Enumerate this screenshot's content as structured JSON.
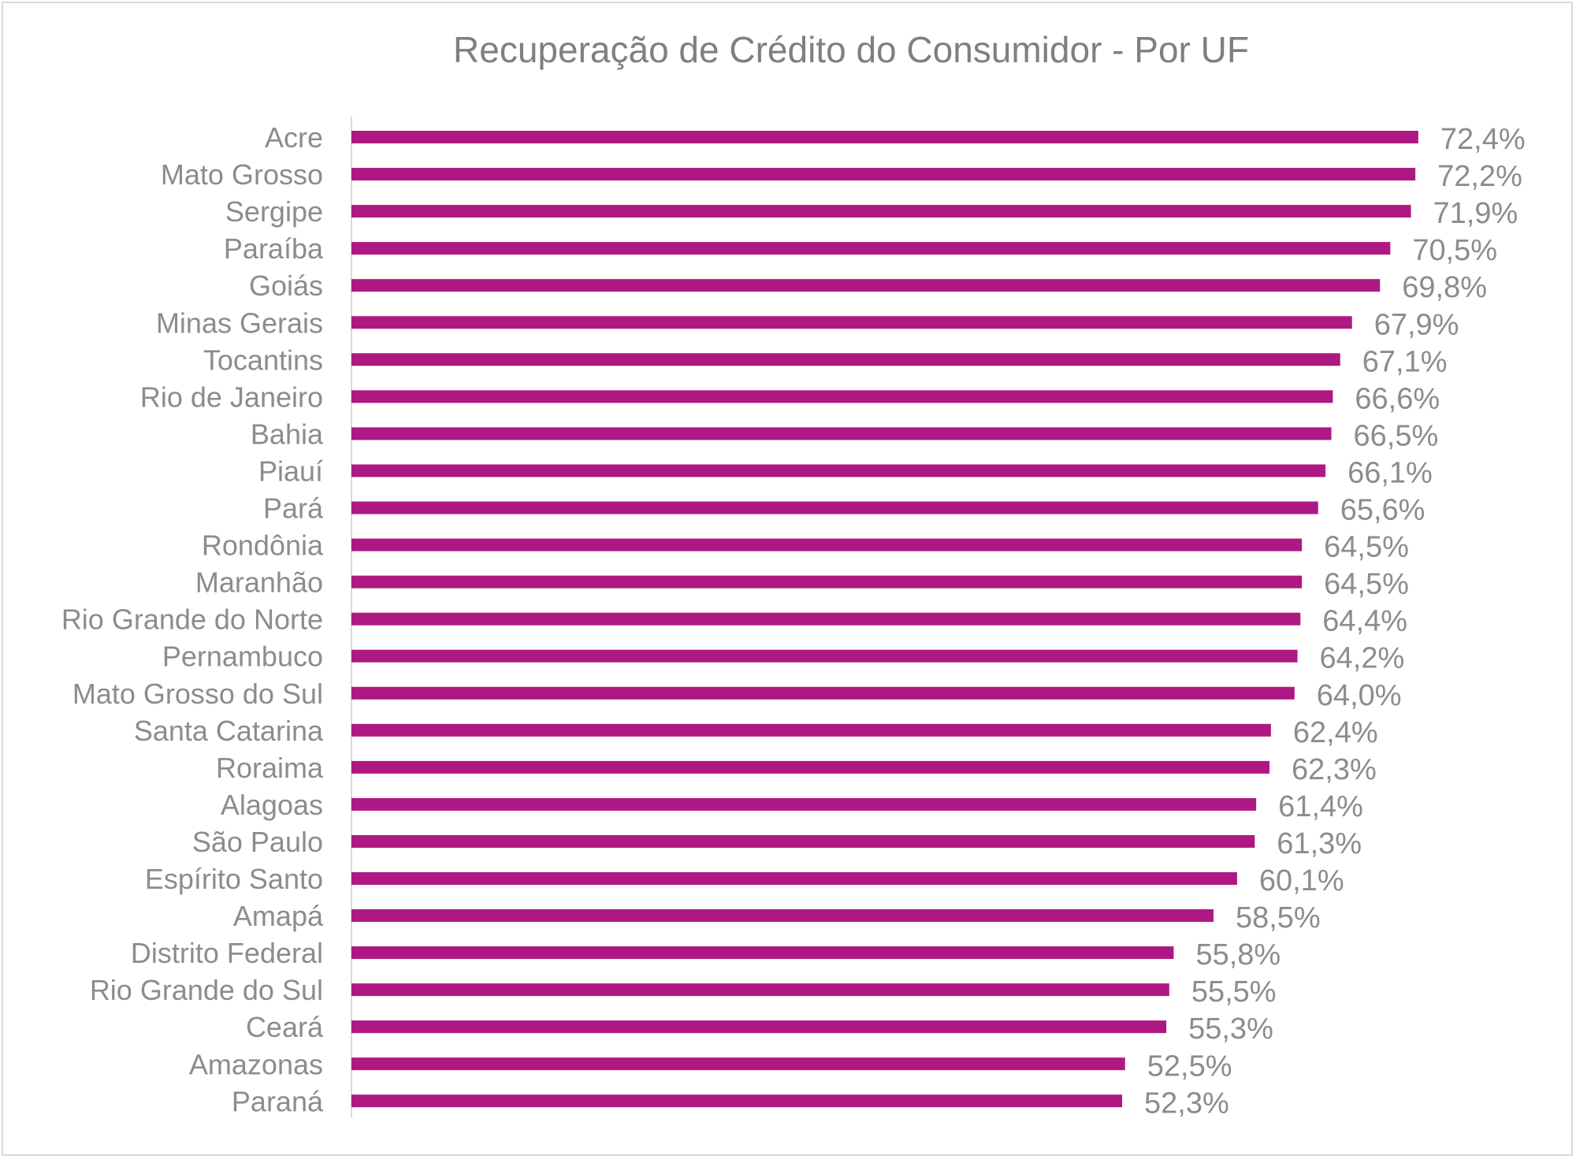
{
  "chart_data": {
    "type": "bar",
    "orientation": "horizontal",
    "title": "Recuperação de Crédito do Consumidor - Por UF",
    "xlabel": "",
    "ylabel": "",
    "categories": [
      "Acre",
      "Mato Grosso",
      "Sergipe",
      "Paraíba",
      "Goiás",
      "Minas Gerais",
      "Tocantins",
      "Rio de Janeiro",
      "Bahia",
      "Piauí",
      "Pará",
      "Rondônia",
      "Maranhão",
      "Rio Grande do Norte",
      "Pernambuco",
      "Mato Grosso do Sul",
      "Santa Catarina",
      "Roraima",
      "Alagoas",
      "São Paulo",
      "Espírito Santo",
      "Amapá",
      "Distrito Federal",
      "Rio Grande do Sul",
      "Ceará",
      "Amazonas",
      "Paraná"
    ],
    "values": [
      72.4,
      72.2,
      71.9,
      70.5,
      69.8,
      67.9,
      67.1,
      66.6,
      66.5,
      66.1,
      65.6,
      64.5,
      64.5,
      64.4,
      64.2,
      64.0,
      62.4,
      62.3,
      61.4,
      61.3,
      60.1,
      58.5,
      55.8,
      55.5,
      55.3,
      52.5,
      52.3
    ],
    "value_labels": [
      "72,4%",
      "72,2%",
      "71,9%",
      "70,5%",
      "69,8%",
      "67,9%",
      "67,1%",
      "66,6%",
      "66,5%",
      "66,1%",
      "65,6%",
      "64,5%",
      "64,5%",
      "64,4%",
      "64,2%",
      "64,0%",
      "62,4%",
      "62,3%",
      "61,4%",
      "61,3%",
      "60,1%",
      "58,5%",
      "55,8%",
      "55,5%",
      "55,3%",
      "52,5%",
      "52,3%"
    ],
    "xlim": [
      0,
      75
    ],
    "grid": false,
    "legend": "none",
    "bar_color": "#ae1882",
    "text_color": "#8c8c8c",
    "title_color": "#7f7f7f",
    "axis_color": "#d9d9d9"
  }
}
